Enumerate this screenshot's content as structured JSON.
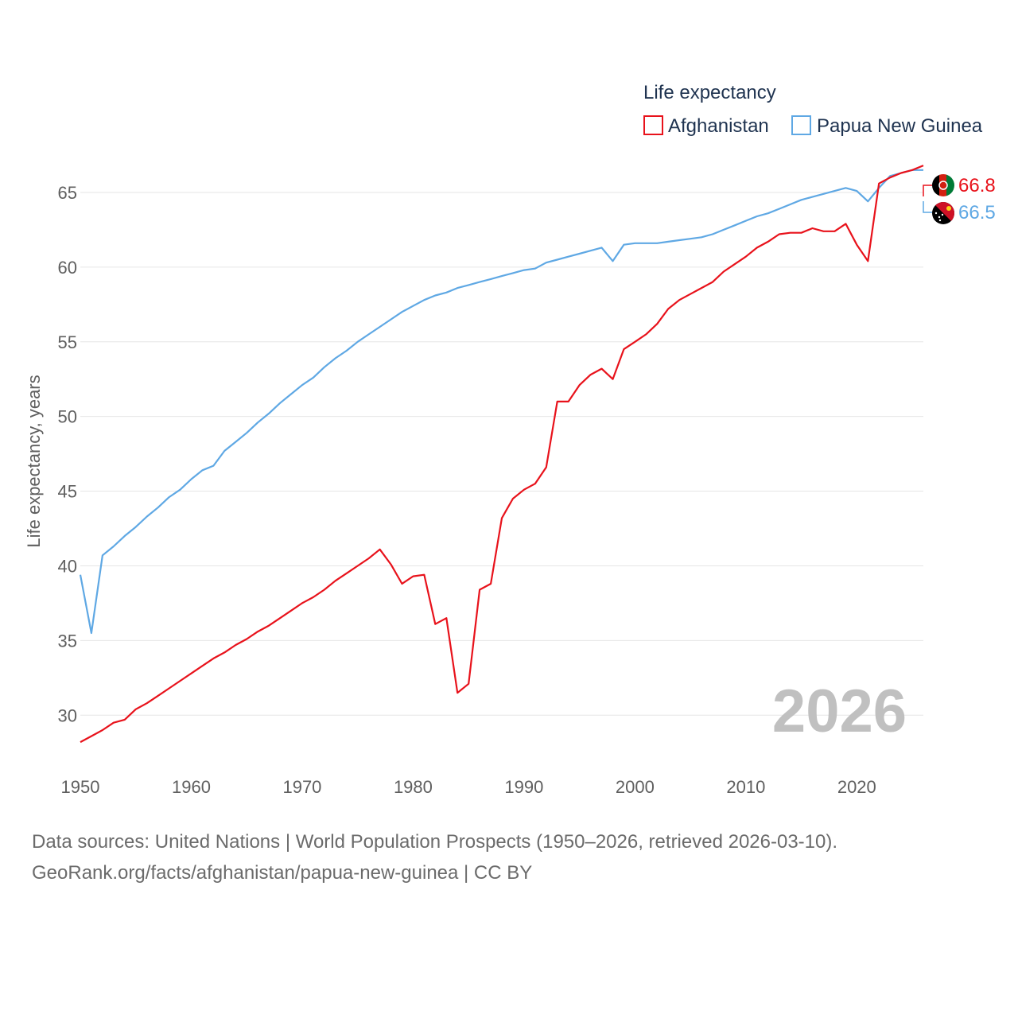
{
  "chart_data": {
    "type": "line",
    "legend_title": "Life expectancy",
    "ylabel": "Life expectancy, years",
    "xlabel": "",
    "year_watermark": "2026",
    "xlim": [
      1950,
      2026
    ],
    "ylim": [
      26.5,
      67.5
    ],
    "x_ticks": [
      1950,
      1960,
      1970,
      1980,
      1990,
      2000,
      2010,
      2020
    ],
    "y_ticks": [
      30,
      35,
      40,
      45,
      50,
      55,
      60,
      65
    ],
    "gridlines": true,
    "legend_position": "top-right",
    "x": [
      1950,
      1951,
      1952,
      1953,
      1954,
      1955,
      1956,
      1957,
      1958,
      1959,
      1960,
      1961,
      1962,
      1963,
      1964,
      1965,
      1966,
      1967,
      1968,
      1969,
      1970,
      1971,
      1972,
      1973,
      1974,
      1975,
      1976,
      1977,
      1978,
      1979,
      1980,
      1981,
      1982,
      1983,
      1984,
      1985,
      1986,
      1987,
      1988,
      1989,
      1990,
      1991,
      1992,
      1993,
      1994,
      1995,
      1996,
      1997,
      1998,
      1999,
      2000,
      2001,
      2002,
      2003,
      2004,
      2005,
      2006,
      2007,
      2008,
      2009,
      2010,
      2011,
      2012,
      2013,
      2014,
      2015,
      2016,
      2017,
      2018,
      2019,
      2020,
      2021,
      2022,
      2023,
      2024,
      2025,
      2026
    ],
    "series": [
      {
        "name": "Afghanistan",
        "color": "#e8121b",
        "end_label": "66.8",
        "flag": "afghanistan-flag-icon",
        "values": [
          28.2,
          28.6,
          29.0,
          29.5,
          29.7,
          30.4,
          30.8,
          31.3,
          31.8,
          32.3,
          32.8,
          33.3,
          33.8,
          34.2,
          34.7,
          35.1,
          35.6,
          36.0,
          36.5,
          37.0,
          37.5,
          37.9,
          38.4,
          39.0,
          39.5,
          40.0,
          40.5,
          41.1,
          40.1,
          38.8,
          39.3,
          39.4,
          36.1,
          36.5,
          31.5,
          32.1,
          38.4,
          38.8,
          43.2,
          44.5,
          45.1,
          45.5,
          46.6,
          51.0,
          51.0,
          52.1,
          52.8,
          53.2,
          52.5,
          54.5,
          55.0,
          55.5,
          56.2,
          57.2,
          57.8,
          58.2,
          58.6,
          59.0,
          59.7,
          60.2,
          60.7,
          61.3,
          61.7,
          62.2,
          62.3,
          62.3,
          62.6,
          62.4,
          62.4,
          62.9,
          61.5,
          60.4,
          65.6,
          66.0,
          66.3,
          66.5,
          66.8
        ]
      },
      {
        "name": "Papua New Guinea",
        "color": "#5fa8e4",
        "end_label": "66.5",
        "flag": "papua-new-guinea-flag-icon",
        "values": [
          39.4,
          35.5,
          40.7,
          41.3,
          42.0,
          42.6,
          43.3,
          43.9,
          44.6,
          45.1,
          45.8,
          46.4,
          46.7,
          47.7,
          48.3,
          48.9,
          49.6,
          50.2,
          50.9,
          51.5,
          52.1,
          52.6,
          53.3,
          53.9,
          54.4,
          55.0,
          55.5,
          56.0,
          56.5,
          57.0,
          57.4,
          57.8,
          58.1,
          58.3,
          58.6,
          58.8,
          59.0,
          59.2,
          59.4,
          59.6,
          59.8,
          59.9,
          60.3,
          60.5,
          60.7,
          60.9,
          61.1,
          61.3,
          60.4,
          61.5,
          61.6,
          61.6,
          61.6,
          61.7,
          61.8,
          61.9,
          62.0,
          62.2,
          62.5,
          62.8,
          63.1,
          63.4,
          63.6,
          63.9,
          64.2,
          64.5,
          64.7,
          64.9,
          65.1,
          65.3,
          65.1,
          64.4,
          65.3,
          66.1,
          66.3,
          66.5,
          66.5
        ]
      }
    ]
  },
  "source": {
    "line1": "Data sources: United Nations | World Population Prospects (1950–2026, retrieved 2026-03-10).",
    "line2": "GeoRank.org/facts/afghanistan/papua-new-guinea | CC BY"
  }
}
